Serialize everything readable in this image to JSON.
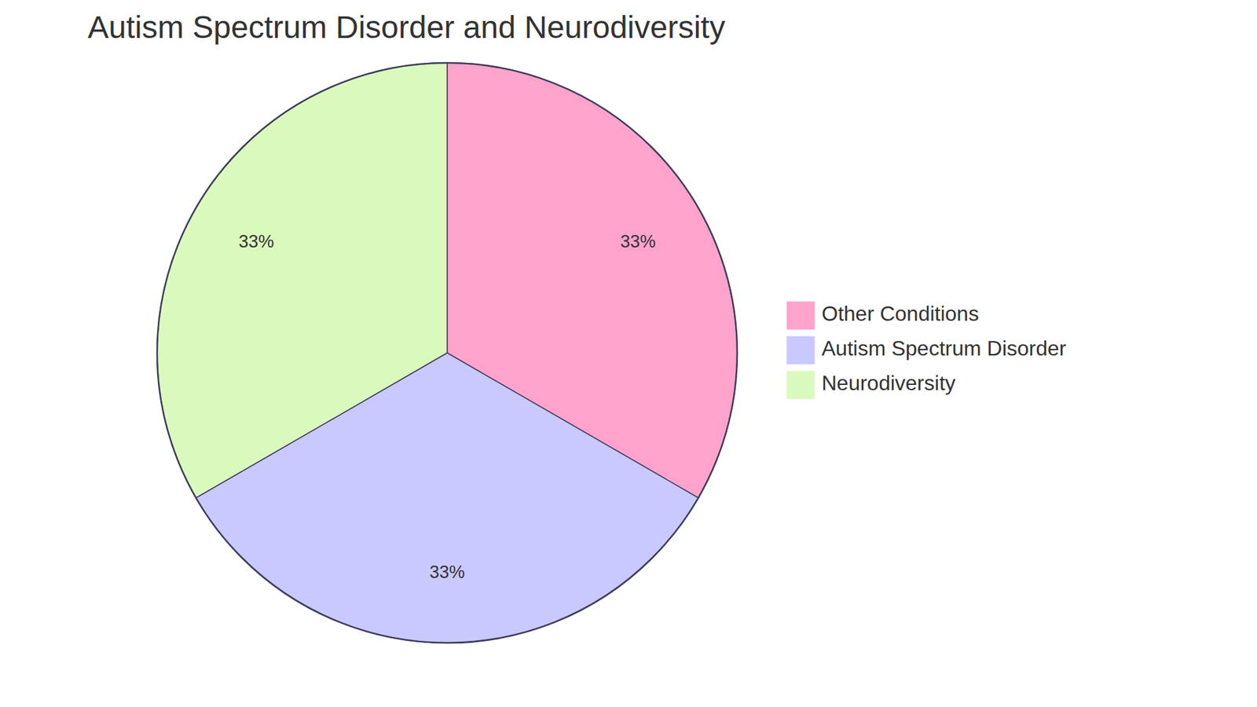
{
  "chart_data": {
    "type": "pie",
    "title": "Autism Spectrum Disorder and Neurodiversity",
    "categories": [
      "Other Conditions",
      "Autism Spectrum Disorder",
      "Neurodiversity"
    ],
    "values": [
      33,
      33,
      33
    ],
    "value_labels": [
      "33%",
      "33%",
      "33%"
    ],
    "colors": [
      "#ffa3cc",
      "#c9c9ff",
      "#dafabd"
    ],
    "data_labels": true,
    "legend": "right"
  }
}
